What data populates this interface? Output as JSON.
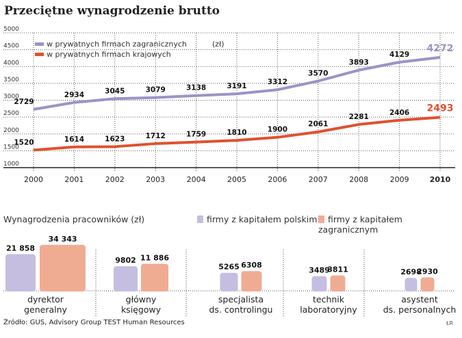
{
  "title": "Przeciętne wynagrodzenie brutto",
  "source": "Źródło: GUS, Advisory Group TEST Human Resources",
  "signature": "ŁR",
  "chart_data": [
    {
      "type": "line",
      "unit_label": "(zł)",
      "x": [
        2000,
        2001,
        2002,
        2003,
        2004,
        2005,
        2006,
        2007,
        2008,
        2009,
        2010
      ],
      "x_tick_labels": [
        "2000",
        "2001",
        "2002",
        "2003",
        "2004",
        "2005",
        "2006",
        "2007",
        "2008",
        "2009",
        "2010"
      ],
      "y_ticks": [
        1000,
        1500,
        2000,
        2500,
        3000,
        3500,
        4000,
        4500,
        5000
      ],
      "ylim": [
        1000,
        5000
      ],
      "grid": true,
      "legend_placement": "top-left",
      "series": [
        {
          "name": "w prywatnych firmach zagranicznych",
          "color": "#9c93c8",
          "values": [
            2729,
            2934,
            3045,
            3079,
            3138,
            3191,
            3312,
            3570,
            3893,
            4129,
            4272
          ]
        },
        {
          "name": "w prywatnych firmach krajowych",
          "color": "#e0512f",
          "values": [
            1520,
            1614,
            1623,
            1712,
            1759,
            1810,
            1900,
            2061,
            2281,
            2406,
            2493
          ]
        }
      ]
    },
    {
      "type": "bar",
      "title": "Wynagrodzenia pracowników (zł)",
      "categories": [
        [
          "dyrektor",
          "generalny"
        ],
        [
          "główny",
          "księgowy"
        ],
        [
          "specjalista",
          "ds. controlingu"
        ],
        [
          "technik",
          "laboratoryjny"
        ],
        [
          "asystent",
          "ds. personalnych"
        ]
      ],
      "series": [
        {
          "name": "firmy z kapitałem polskim",
          "color": "#c5bee0",
          "values": [
            21858,
            9802,
            5265,
            3489,
            2698
          ],
          "labels": [
            "21 858",
            "9802",
            "5265",
            "3489",
            "2698"
          ]
        },
        {
          "name": "firmy z kapitałem zagranicznym",
          "color": "#f0ac93",
          "values": [
            34343,
            11886,
            6308,
            3811,
            2930
          ],
          "labels": [
            "34 343",
            "11 886",
            "6308",
            "3811",
            "2930"
          ]
        }
      ]
    }
  ]
}
